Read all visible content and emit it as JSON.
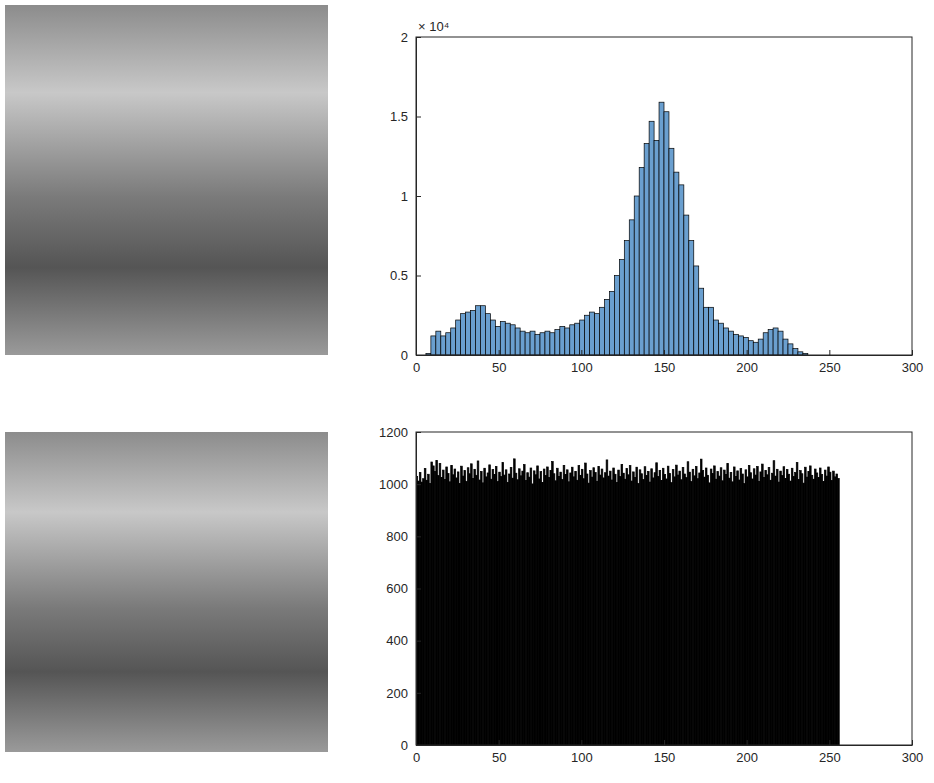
{
  "chart_data": [
    {
      "type": "histogram",
      "color": "#6a9fcf",
      "bins": [
        6,
        9,
        12,
        15,
        18,
        21,
        24,
        27,
        30,
        33,
        36,
        39,
        42,
        45,
        48,
        51,
        54,
        57,
        60,
        63,
        66,
        69,
        72,
        75,
        78,
        81,
        84,
        87,
        90,
        93,
        96,
        99,
        102,
        105,
        108,
        111,
        114,
        117,
        120,
        123,
        126,
        129,
        132,
        135,
        138,
        141,
        144,
        147,
        150,
        153,
        156,
        159,
        162,
        165,
        168,
        171,
        174,
        177,
        180,
        183,
        186,
        189,
        192,
        195,
        198,
        201,
        204,
        207,
        210,
        213,
        216,
        219,
        222,
        225,
        228,
        231,
        234,
        237
      ],
      "counts": [
        0.01,
        0.12,
        0.15,
        0.12,
        0.14,
        0.17,
        0.22,
        0.26,
        0.27,
        0.28,
        0.31,
        0.31,
        0.26,
        0.22,
        0.18,
        0.21,
        0.2,
        0.19,
        0.17,
        0.15,
        0.14,
        0.15,
        0.13,
        0.14,
        0.15,
        0.14,
        0.16,
        0.18,
        0.17,
        0.19,
        0.2,
        0.22,
        0.25,
        0.27,
        0.26,
        0.3,
        0.35,
        0.4,
        0.5,
        0.6,
        0.72,
        0.85,
        1.0,
        1.18,
        1.33,
        1.47,
        1.35,
        1.59,
        1.53,
        1.3,
        1.15,
        1.07,
        0.88,
        0.72,
        0.56,
        0.42,
        0.3,
        0.3,
        0.22,
        0.2,
        0.17,
        0.15,
        0.13,
        0.12,
        0.11,
        0.09,
        0.08,
        0.1,
        0.14,
        0.16,
        0.17,
        0.15,
        0.1,
        0.07,
        0.04,
        0.02,
        0.01
      ],
      "xlim": [
        0,
        300
      ],
      "xticks": [
        0,
        50,
        100,
        150,
        200,
        250,
        300
      ],
      "ylim": [
        0,
        2
      ],
      "yticks": [
        0,
        0.5,
        1,
        1.5,
        2
      ],
      "annotations": [
        "× 10⁴"
      ]
    },
    {
      "type": "histogram",
      "color": "#000000",
      "bins": [
        0,
        1,
        2,
        3,
        4,
        5,
        6,
        7,
        8,
        9,
        10,
        11,
        12,
        13,
        14,
        15,
        16,
        17,
        18,
        19,
        20,
        21,
        22,
        23,
        24,
        25,
        26,
        27,
        28,
        29,
        30,
        31,
        32,
        33,
        34,
        35,
        36,
        37,
        38,
        39,
        40,
        41,
        42,
        43,
        44,
        45,
        46,
        47,
        48,
        49,
        50,
        51,
        52,
        53,
        54,
        55,
        56,
        57,
        58,
        59,
        60,
        61,
        62,
        63,
        64,
        65,
        66,
        67,
        68,
        69,
        70,
        71,
        72,
        73,
        74,
        75,
        76,
        77,
        78,
        79,
        80,
        81,
        82,
        83,
        84,
        85,
        86,
        87,
        88,
        89,
        90,
        91,
        92,
        93,
        94,
        95,
        96,
        97,
        98,
        99,
        100,
        101,
        102,
        103,
        104,
        105,
        106,
        107,
        108,
        109,
        110,
        111,
        112,
        113,
        114,
        115,
        116,
        117,
        118,
        119,
        120,
        121,
        122,
        123,
        124,
        125,
        126,
        127,
        128,
        129,
        130,
        131,
        132,
        133,
        134,
        135,
        136,
        137,
        138,
        139,
        140,
        141,
        142,
        143,
        144,
        145,
        146,
        147,
        148,
        149,
        150,
        151,
        152,
        153,
        154,
        155,
        156,
        157,
        158,
        159,
        160,
        161,
        162,
        163,
        164,
        165,
        166,
        167,
        168,
        169,
        170,
        171,
        172,
        173,
        174,
        175,
        176,
        177,
        178,
        179,
        180,
        181,
        182,
        183,
        184,
        185,
        186,
        187,
        188,
        189,
        190,
        191,
        192,
        193,
        194,
        195,
        196,
        197,
        198,
        199,
        200,
        201,
        202,
        203,
        204,
        205,
        206,
        207,
        208,
        209,
        210,
        211,
        212,
        213,
        214,
        215,
        216,
        217,
        218,
        219,
        220,
        221,
        222,
        223,
        224,
        225,
        226,
        227,
        228,
        229,
        230,
        231,
        232,
        233,
        234,
        235,
        236,
        237,
        238,
        239,
        240,
        241,
        242,
        243,
        244,
        245,
        246,
        247,
        248,
        249,
        250,
        251,
        252,
        253,
        254,
        255,
        256
      ],
      "counts": [
        1030,
        1012,
        1045,
        1008,
        1021,
        1060,
        1015,
        1038,
        1002,
        1085,
        1070,
        1048,
        1091,
        1033,
        1079,
        1026,
        1054,
        1018,
        1066,
        1041,
        1009,
        1072,
        1036,
        1058,
        1024,
        1047,
        1003,
        1069,
        1031,
        1052,
        1011,
        1063,
        1040,
        1078,
        1022,
        1057,
        1034,
        1089,
        1016,
        1049,
        1005,
        1061,
        1028,
        1043,
        1074,
        1019,
        1056,
        1037,
        1068,
        1010,
        1046,
        1029,
        1083,
        1035,
        1055,
        1007,
        1039,
        1064,
        1023,
        1097,
        1042,
        1017,
        1059,
        1032,
        1050,
        1075,
        1014,
        1044,
        1027,
        1062,
        1001,
        1051,
        1036,
        1070,
        1020,
        1048,
        1006,
        1058,
        1033,
        1066,
        1025,
        1053,
        1087,
        1040,
        1013,
        1061,
        1030,
        1046,
        1018,
        1072,
        1037,
        1055,
        1009,
        1043,
        1065,
        1028,
        1049,
        1015,
        1071,
        1034,
        1057,
        1021,
        1081,
        1039,
        1004,
        1052,
        1027,
        1063,
        1045,
        1011,
        1068,
        1035,
        1058,
        1024,
        1044,
        1093,
        1031,
        1050,
        1016,
        1062,
        1038,
        1007,
        1054,
        1029,
        1076,
        1042,
        1019,
        1060,
        1036,
        1071,
        1012,
        1047,
        1026,
        1065,
        1003,
        1055,
        1040,
        1018,
        1067,
        1033,
        1049,
        1008,
        1059,
        1024,
        1044,
        1082,
        1030,
        1053,
        1014,
        1061,
        1037,
        1020,
        1069,
        1041,
        1006,
        1056,
        1028,
        1073,
        1035,
        1050,
        1017,
        1064,
        1039,
        1025,
        1086,
        1046,
        1010,
        1057,
        1032,
        1068,
        1021,
        1043,
        1096,
        1052,
        1027,
        1062,
        1034,
        1005,
        1058,
        1041,
        1070,
        1019,
        1048,
        1031,
        1063,
        1013,
        1054,
        1037,
        1079,
        1023,
        1045,
        1009,
        1066,
        1030,
        1051,
        1016,
        1060,
        1039,
        1002,
        1055,
        1028,
        1072,
        1044,
        1020,
        1059,
        1035,
        1068,
        1011,
        1047,
        1077,
        1026,
        1053,
        1036,
        1064,
        1015,
        1042,
        1090,
        1031,
        1057,
        1008,
        1050,
        1033,
        1067,
        1022,
        1056,
        1038,
        1012,
        1061,
        1029,
        1045,
        1083,
        1018,
        1052,
        1040,
        1004,
        1065,
        1027,
        1049,
        1070,
        1034,
        1019,
        1058,
        1043,
        1025,
        1062,
        1037,
        1010,
        1054,
        1031,
        1066,
        1046,
        1014,
        1050,
        1028,
        1039,
        1022
      ],
      "xlim": [
        0,
        300
      ],
      "xticks": [
        0,
        50,
        100,
        150,
        200,
        250,
        300
      ],
      "ylim": [
        0,
        1200
      ],
      "yticks": [
        0,
        200,
        400,
        600,
        800,
        1000,
        1200
      ]
    }
  ]
}
